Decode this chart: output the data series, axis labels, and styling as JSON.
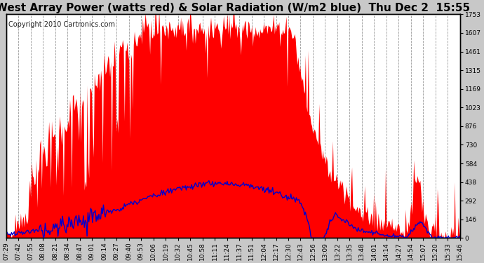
{
  "title": "West Array Power (watts red) & Solar Radiation (W/m2 blue)  Thu Dec 2  15:55",
  "copyright": "Copyright 2010 Cartronics.com",
  "ymax": 1753.0,
  "yticks": [
    0.0,
    146.1,
    292.2,
    438.2,
    584.3,
    730.4,
    876.5,
    1022.6,
    1168.7,
    1314.7,
    1460.8,
    1606.9,
    1753.0
  ],
  "bg_color": "#c8c8c8",
  "plot_bg": "#ffffff",
  "grid_color": "#999999",
  "red_color": "#ff0000",
  "blue_color": "#0000cc",
  "title_fontsize": 11,
  "copyright_fontsize": 7,
  "tick_fontsize": 6.5,
  "x_labels": [
    "07:29",
    "07:42",
    "07:55",
    "08:08",
    "08:21",
    "08:34",
    "08:47",
    "09:01",
    "09:14",
    "09:27",
    "09:40",
    "09:53",
    "10:06",
    "10:19",
    "10:32",
    "10:45",
    "10:58",
    "11:11",
    "11:24",
    "11:37",
    "11:51",
    "12:04",
    "12:17",
    "12:30",
    "12:43",
    "12:56",
    "13:09",
    "13:22",
    "13:35",
    "13:48",
    "14:01",
    "14:14",
    "14:27",
    "14:54",
    "15:07",
    "15:20",
    "15:33",
    "15:46"
  ]
}
